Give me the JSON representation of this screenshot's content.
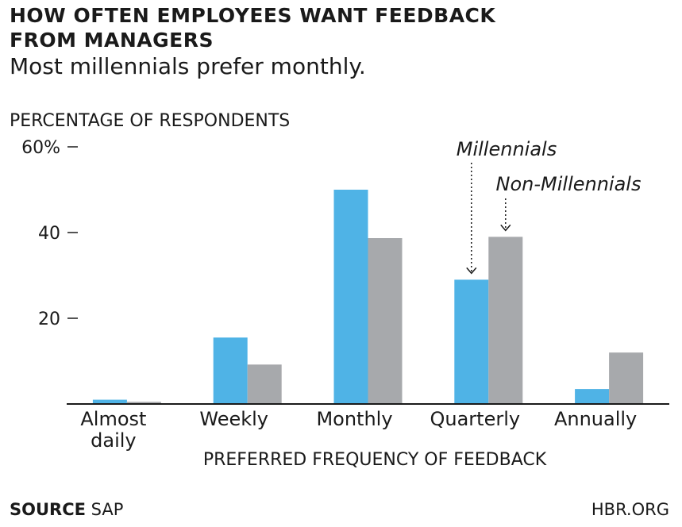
{
  "title": "HOW OFTEN EMPLOYEES WANT FEEDBACK FROM MANAGERS",
  "subtitle": "Most millennials prefer monthly.",
  "footer": {
    "source_label": "SOURCE",
    "source_value": "SAP",
    "credit": "HBR.ORG"
  },
  "colors": {
    "millennials": "#4fb3e6",
    "non_millennials": "#a7a9ac",
    "axis": "#1a1a1a"
  },
  "chart_data": {
    "type": "bar",
    "title": "HOW OFTEN EMPLOYEES WANT FEEDBACK FROM MANAGERS",
    "subtitle": "Most millennials prefer monthly.",
    "ylabel": "PERCENTAGE OF RESPONDENTS",
    "xlabel": "PREFERRED FREQUENCY OF FEEDBACK",
    "categories": [
      "Almost daily",
      "Weekly",
      "Monthly",
      "Quarterly",
      "Annually"
    ],
    "series": [
      {
        "name": "Millennials",
        "values": [
          1,
          15.5,
          50,
          29,
          3.5
        ]
      },
      {
        "name": "Non-Millennials",
        "values": [
          0.5,
          9.2,
          38.7,
          39,
          12
        ]
      }
    ],
    "ylim": [
      0,
      60
    ],
    "yticks": [
      20,
      40,
      60
    ],
    "ytick_labels": [
      "20",
      "40",
      "60%"
    ],
    "grid": false,
    "legend": "annotations with dotted arrows above Quarterly bars"
  }
}
